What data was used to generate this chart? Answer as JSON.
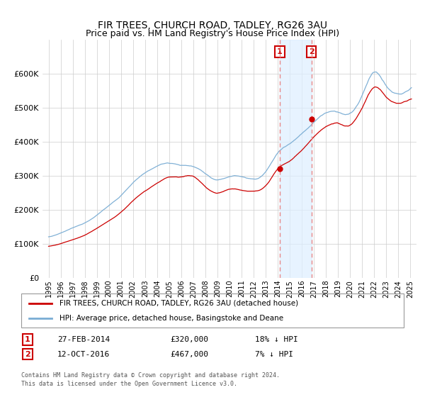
{
  "title": "FIR TREES, CHURCH ROAD, TADLEY, RG26 3AU",
  "subtitle": "Price paid vs. HM Land Registry's House Price Index (HPI)",
  "legend_line1": "FIR TREES, CHURCH ROAD, TADLEY, RG26 3AU (detached house)",
  "legend_line2": "HPI: Average price, detached house, Basingstoke and Deane",
  "table": [
    {
      "num": "1",
      "date": "27-FEB-2014",
      "price": "£320,000",
      "hpi": "18% ↓ HPI"
    },
    {
      "num": "2",
      "date": "12-OCT-2016",
      "price": "£467,000",
      "hpi": "7% ↓ HPI"
    }
  ],
  "footnote": "Contains HM Land Registry data © Crown copyright and database right 2024.\nThis data is licensed under the Open Government Licence v3.0.",
  "sale1_date_num": 2014.16,
  "sale1_price": 320000,
  "sale2_date_num": 2016.79,
  "sale2_price": 467000,
  "hpi_color": "#7aadd4",
  "sale_color": "#cc0000",
  "dashed_line_color": "#e88888",
  "shade_color": "#ddeeff",
  "ylim": [
    0,
    700000
  ],
  "yticks": [
    0,
    100000,
    200000,
    300000,
    400000,
    500000,
    600000
  ],
  "ytick_labels": [
    "£0",
    "£100K",
    "£200K",
    "£300K",
    "£400K",
    "£500K",
    "£600K"
  ],
  "xlim_start": 1994.5,
  "xlim_end": 2025.5
}
